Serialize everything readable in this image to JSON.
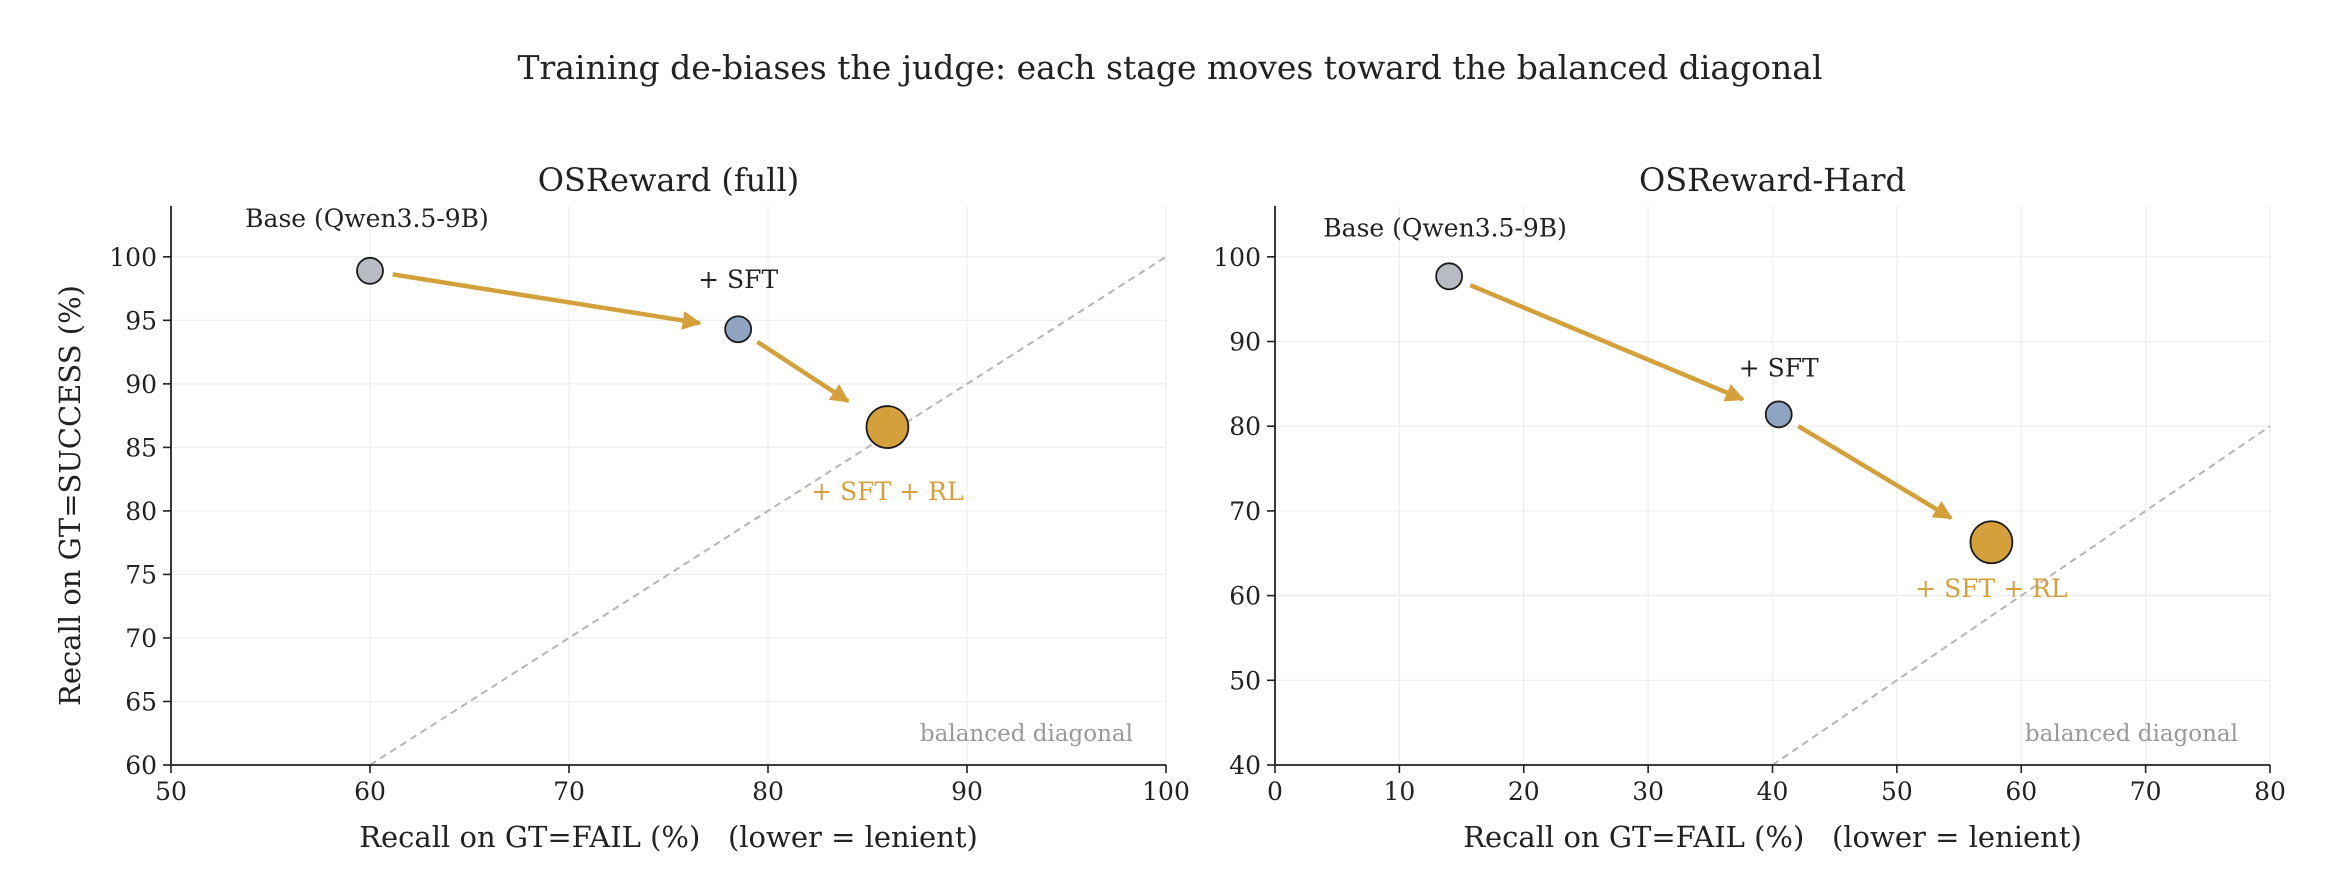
{
  "suptitle": "Training de-biases the judge: each stage moves toward the balanced diagonal",
  "colors": {
    "arrow": "#D4A03C",
    "base_point": "#B9BBC3",
    "sft_point": "#8FA4C0",
    "rl_point": "#D4A03C",
    "rl_label": "#D4A03C",
    "diagonal": "#B5B5B5",
    "diagonal_label": "#999999",
    "grid": "#EEEEEE",
    "axis": "#222222"
  },
  "chart_data": [
    {
      "type": "scatter",
      "title": "OSReward (full)",
      "xlabel": "Recall on GT=FAIL (%)   (lower = lenient)",
      "ylabel": "Recall on GT=SUCCESS (%)",
      "xlim": [
        50,
        100
      ],
      "ylim": [
        60,
        104
      ],
      "xticks": [
        50,
        60,
        70,
        80,
        90,
        100
      ],
      "yticks": [
        60,
        65,
        70,
        75,
        80,
        85,
        90,
        95,
        100
      ],
      "grid": true,
      "diagonal_label": "balanced diagonal",
      "points": [
        {
          "label": "Base (Qwen3.5-9B)",
          "x": 60.0,
          "y": 98.9,
          "stage": "base"
        },
        {
          "label": "+ SFT",
          "x": 78.5,
          "y": 94.3,
          "stage": "sft"
        },
        {
          "label": "+ SFT + RL",
          "x": 86.0,
          "y": 86.6,
          "stage": "rl"
        }
      ]
    },
    {
      "type": "scatter",
      "title": "OSReward-Hard",
      "xlabel": "Recall on GT=FAIL (%)   (lower = lenient)",
      "ylabel": "",
      "xlim": [
        0,
        80
      ],
      "ylim": [
        40,
        106
      ],
      "xticks": [
        0,
        10,
        20,
        30,
        40,
        50,
        60,
        70,
        80
      ],
      "yticks": [
        40,
        50,
        60,
        70,
        80,
        90,
        100
      ],
      "grid": true,
      "diagonal_label": "balanced diagonal",
      "points": [
        {
          "label": "Base (Qwen3.5-9B)",
          "x": 14.0,
          "y": 97.7,
          "stage": "base"
        },
        {
          "label": "+ SFT",
          "x": 40.5,
          "y": 81.4,
          "stage": "sft"
        },
        {
          "label": "+ SFT + RL",
          "x": 57.6,
          "y": 66.3,
          "stage": "rl"
        }
      ]
    }
  ]
}
